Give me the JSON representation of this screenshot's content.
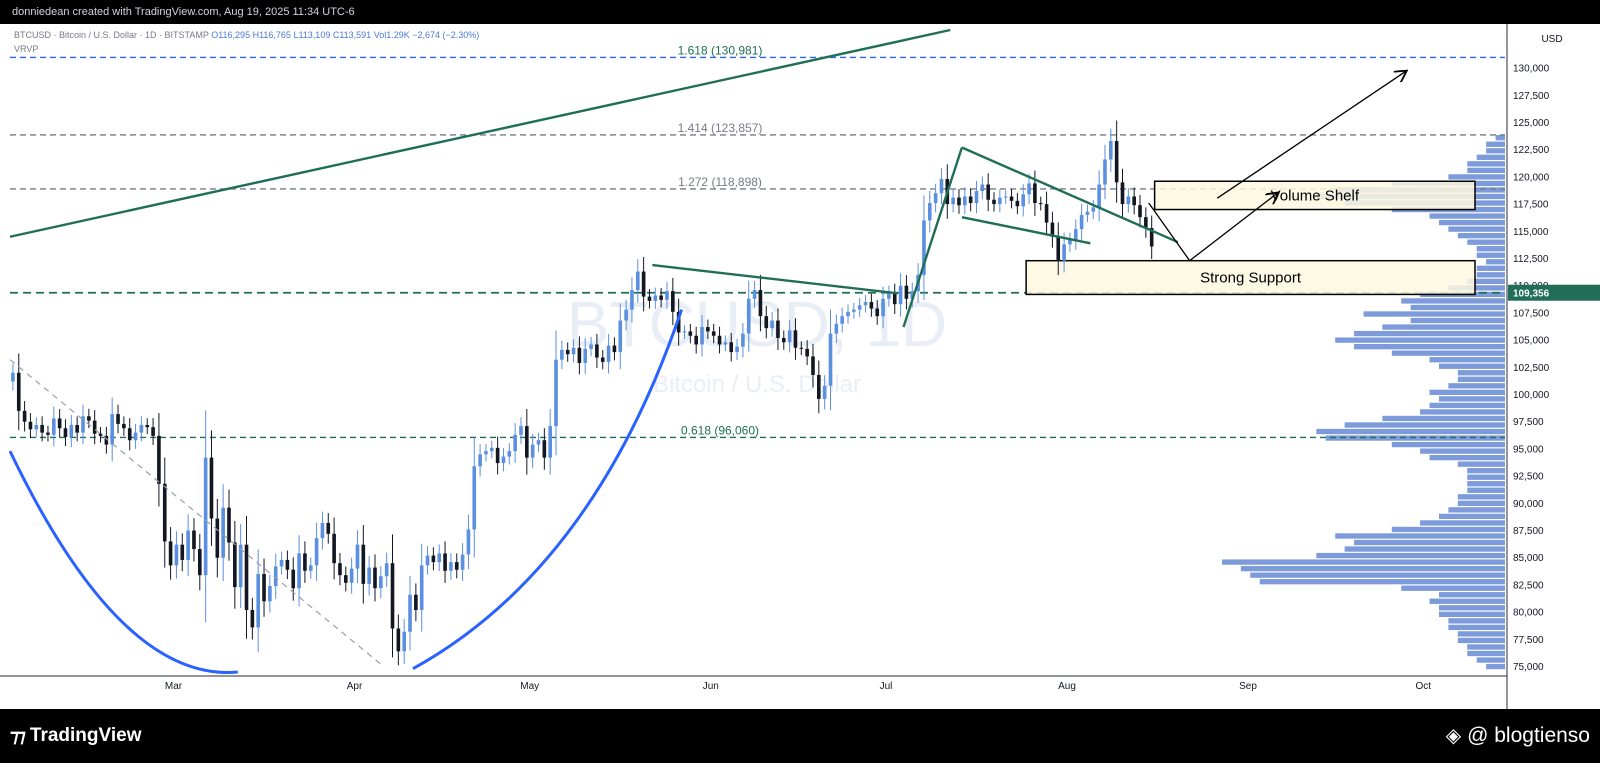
{
  "watermark_header": "donniedean created with TradingView.com, Aug 19, 2025 11:34 UTC-6",
  "footer": {
    "brand": "TradingView",
    "brand_icon": "tradingview-logo-icon",
    "author": "@ blogtienso",
    "author_icon": "binance-diamond-icon"
  },
  "colors": {
    "up": "#5b8fe0",
    "down": "#131722",
    "trend_green": "#1f6e55",
    "bowl_blue": "#2962ff",
    "fib_blue": "#2962ff",
    "fib_gray": "#787b86",
    "fib_green": "#1f6e55",
    "support_green": "#1f6e55",
    "vrvp": "#6f8fd6",
    "box_fill": "#fdf8e1",
    "price_tag": "#1f6e55"
  },
  "legend": {
    "symbol": "BTCUSD · Bitcoin / U.S. Dollar · 1D · BITSTAMP",
    "open": "O116,295",
    "high": "H116,765",
    "low": "L113,109",
    "close": "C113,591",
    "vol": "Vol1.29K",
    "change": "−2,674 (−2.30%)",
    "indicator": "VRVP"
  },
  "watermark": {
    "ticker": "BTCUSD, 1D",
    "name": "Bitcoin / U.S. Dollar"
  },
  "chart_data": {
    "type": "candlestick",
    "currency_label": "USD",
    "y_range": [
      74500,
      133500
    ],
    "y_ticks": [
      {
        "v": 75000,
        "label": "75,000"
      },
      {
        "v": 77500,
        "label": "77,500"
      },
      {
        "v": 80000,
        "label": "80,000"
      },
      {
        "v": 82500,
        "label": "82,500"
      },
      {
        "v": 85000,
        "label": "85,000"
      },
      {
        "v": 87500,
        "label": "87,500"
      },
      {
        "v": 90000,
        "label": "90,000"
      },
      {
        "v": 92500,
        "label": "92,500"
      },
      {
        "v": 95000,
        "label": "95,000"
      },
      {
        "v": 97500,
        "label": "97,500"
      },
      {
        "v": 100000,
        "label": "100,000"
      },
      {
        "v": 102500,
        "label": "102,500"
      },
      {
        "v": 105000,
        "label": "105,000"
      },
      {
        "v": 107500,
        "label": "107,500"
      },
      {
        "v": 110000,
        "label": "110,000"
      },
      {
        "v": 112500,
        "label": "112,500"
      },
      {
        "v": 115000,
        "label": "115,000"
      },
      {
        "v": 117500,
        "label": "117,500"
      },
      {
        "v": 120000,
        "label": "120,000"
      },
      {
        "v": 122500,
        "label": "122,500"
      },
      {
        "v": 125000,
        "label": "125,000"
      },
      {
        "v": 127500,
        "label": "127,500"
      },
      {
        "v": 130000,
        "label": "130,000"
      }
    ],
    "x_axis": {
      "start_date": "2025-02-01",
      "end_date": "2025-10-15",
      "ticks": [
        {
          "date": "2025-03-01",
          "label": "Mar"
        },
        {
          "date": "2025-04-01",
          "label": "Apr"
        },
        {
          "date": "2025-05-01",
          "label": "May"
        },
        {
          "date": "2025-06-01",
          "label": "Jun"
        },
        {
          "date": "2025-07-01",
          "label": "Jul"
        },
        {
          "date": "2025-08-01",
          "label": "Aug"
        },
        {
          "date": "2025-09-01",
          "label": "Sep"
        },
        {
          "date": "2025-10-01",
          "label": "Oct"
        }
      ]
    },
    "candles_start_date": "2025-02-01",
    "closes": [
      102000,
      98500,
      97500,
      96800,
      97200,
      96500,
      96300,
      97800,
      96900,
      96100,
      97200,
      96500,
      98000,
      97600,
      96400,
      96200,
      95400,
      98200,
      97300,
      96900,
      95800,
      96500,
      97200,
      97000,
      96200,
      91800,
      86500,
      84300,
      86200,
      84800,
      87500,
      85800,
      83400,
      94200,
      88600,
      85000,
      89600,
      86400,
      82300,
      86200,
      80200,
      78600,
      83500,
      81000,
      82400,
      84200,
      84800,
      83900,
      82200,
      85400,
      83800,
      84300,
      86800,
      88200,
      87200,
      84500,
      83400,
      82700,
      84000,
      86200,
      82600,
      84100,
      82200,
      83300,
      84500,
      78500,
      76400,
      78200,
      81600,
      80200,
      84300,
      85200,
      84600,
      85400,
      83800,
      84600,
      83900,
      85300,
      87600,
      93400,
      94500,
      94800,
      95100,
      93700,
      94300,
      94800,
      96300,
      97100,
      94200,
      95400,
      95800,
      94200,
      97100,
      103200,
      104100,
      103700,
      104300,
      102900,
      104200,
      104600,
      103400,
      103000,
      104500,
      103900,
      106800,
      107800,
      109600,
      111300,
      109000,
      108600,
      109100,
      108700,
      109500,
      107600,
      105700,
      105800,
      105400,
      104600,
      106200,
      105800,
      105400,
      104600,
      104800,
      103900,
      104400,
      105600,
      108800,
      109600,
      107200,
      106100,
      106800,
      105200,
      104800,
      105900,
      104300,
      104200,
      103500,
      101800,
      99600,
      100800,
      105600,
      106500,
      107200,
      107600,
      107800,
      108200,
      108500,
      107900,
      107200,
      108800,
      109300,
      108300,
      110000,
      108800,
      109500,
      111000,
      116000,
      117600,
      118500,
      119800,
      117500,
      118100,
      117400,
      118200,
      117600,
      118700,
      119300,
      117900,
      117500,
      118100,
      118200,
      117800,
      117300,
      118400,
      119400,
      117600,
      117500,
      115800,
      114500,
      112300,
      113800,
      114200,
      115200,
      116500,
      116800,
      117200,
      119300,
      121600,
      123300,
      119500,
      117500,
      118200,
      117400,
      116300,
      115300,
      113600
    ],
    "volume_profile": [
      {
        "price": 75000,
        "width": 2
      },
      {
        "price": 75600,
        "width": 3
      },
      {
        "price": 76200,
        "width": 4
      },
      {
        "price": 76800,
        "width": 4
      },
      {
        "price": 77400,
        "width": 5
      },
      {
        "price": 78000,
        "width": 5
      },
      {
        "price": 78600,
        "width": 6
      },
      {
        "price": 79200,
        "width": 6
      },
      {
        "price": 79800,
        "width": 7
      },
      {
        "price": 80400,
        "width": 7
      },
      {
        "price": 81000,
        "width": 8
      },
      {
        "price": 81600,
        "width": 7
      },
      {
        "price": 82200,
        "width": 11
      },
      {
        "price": 82800,
        "width": 26
      },
      {
        "price": 83400,
        "width": 27
      },
      {
        "price": 84000,
        "width": 28
      },
      {
        "price": 84600,
        "width": 30
      },
      {
        "price": 85200,
        "width": 20
      },
      {
        "price": 85800,
        "width": 17
      },
      {
        "price": 86400,
        "width": 16
      },
      {
        "price": 87000,
        "width": 18
      },
      {
        "price": 87600,
        "width": 12
      },
      {
        "price": 88200,
        "width": 9
      },
      {
        "price": 88800,
        "width": 7
      },
      {
        "price": 89400,
        "width": 6
      },
      {
        "price": 90000,
        "width": 5
      },
      {
        "price": 90600,
        "width": 5
      },
      {
        "price": 91200,
        "width": 4
      },
      {
        "price": 91800,
        "width": 4
      },
      {
        "price": 92400,
        "width": 4
      },
      {
        "price": 93000,
        "width": 4
      },
      {
        "price": 93600,
        "width": 5
      },
      {
        "price": 94200,
        "width": 8
      },
      {
        "price": 94800,
        "width": 9
      },
      {
        "price": 95400,
        "width": 12
      },
      {
        "price": 96000,
        "width": 19
      },
      {
        "price": 96600,
        "width": 20
      },
      {
        "price": 97200,
        "width": 17
      },
      {
        "price": 97800,
        "width": 13
      },
      {
        "price": 98400,
        "width": 9
      },
      {
        "price": 99000,
        "width": 8
      },
      {
        "price": 99600,
        "width": 7
      },
      {
        "price": 100200,
        "width": 8
      },
      {
        "price": 100800,
        "width": 6
      },
      {
        "price": 101400,
        "width": 5
      },
      {
        "price": 102000,
        "width": 5
      },
      {
        "price": 102600,
        "width": 7
      },
      {
        "price": 103200,
        "width": 8
      },
      {
        "price": 103800,
        "width": 12
      },
      {
        "price": 104400,
        "width": 16
      },
      {
        "price": 105000,
        "width": 18
      },
      {
        "price": 105600,
        "width": 16
      },
      {
        "price": 106200,
        "width": 13
      },
      {
        "price": 106800,
        "width": 10
      },
      {
        "price": 107400,
        "width": 15
      },
      {
        "price": 108000,
        "width": 10
      },
      {
        "price": 108600,
        "width": 11
      },
      {
        "price": 109200,
        "width": 9
      },
      {
        "price": 109800,
        "width": 6
      },
      {
        "price": 110400,
        "width": 4
      },
      {
        "price": 111000,
        "width": 3
      },
      {
        "price": 111600,
        "width": 3
      },
      {
        "price": 112200,
        "width": 2
      },
      {
        "price": 112800,
        "width": 3
      },
      {
        "price": 113400,
        "width": 3
      },
      {
        "price": 114000,
        "width": 4
      },
      {
        "price": 114600,
        "width": 5
      },
      {
        "price": 115200,
        "width": 6
      },
      {
        "price": 115800,
        "width": 7
      },
      {
        "price": 116400,
        "width": 8
      },
      {
        "price": 117000,
        "width": 12
      },
      {
        "price": 117600,
        "width": 17
      },
      {
        "price": 118200,
        "width": 20
      },
      {
        "price": 118800,
        "width": 18
      },
      {
        "price": 119400,
        "width": 12
      },
      {
        "price": 120000,
        "width": 6
      },
      {
        "price": 120600,
        "width": 4
      },
      {
        "price": 121200,
        "width": 4
      },
      {
        "price": 121800,
        "width": 3
      },
      {
        "price": 122400,
        "width": 2
      },
      {
        "price": 123000,
        "width": 2
      },
      {
        "price": 123600,
        "width": 1
      }
    ],
    "fib_levels": [
      {
        "ratio": "1.618",
        "price": 130981,
        "label": "1.618 (130,981)",
        "style": "blue-dashed"
      },
      {
        "ratio": "1.414",
        "price": 123857,
        "label": "1.414 (123,857)",
        "style": "gray-dashed"
      },
      {
        "ratio": "1.272",
        "price": 118898,
        "label": "1.272 (118,898)",
        "style": "gray-dashed"
      },
      {
        "ratio": "0.618",
        "price": 96060,
        "label": "0.618 (96,060)",
        "style": "green-dashed"
      }
    ],
    "support_line": {
      "price": 109356,
      "label": "109,356"
    },
    "annotations": {
      "volume_shelf": {
        "label": "Volume Shelf",
        "price_low": 117000,
        "price_high": 119600,
        "start": "2025-08-16",
        "end": "2025-10-15"
      },
      "strong_support": {
        "label": "Strong Support",
        "price_low": 109200,
        "price_high": 112300,
        "start": "2025-07-25",
        "end": "2025-10-15"
      }
    },
    "trendlines": [
      {
        "name": "ascending-channel",
        "from": [
          "2025-02-01",
          114500
        ],
        "to": [
          "2025-07-12",
          133500
        ]
      },
      {
        "name": "descending-resistance",
        "from": [
          "2025-02-01",
          103200
        ],
        "to": [
          "2025-04-06",
          75000
        ],
        "style": "dashed"
      },
      {
        "name": "consolidation-top",
        "from": [
          "2025-05-22",
          111900
        ],
        "to": [
          "2025-07-03",
          109300
        ]
      },
      {
        "name": "flag-top",
        "from": [
          "2025-07-14",
          122700
        ],
        "to": [
          "2025-08-20",
          114000
        ]
      },
      {
        "name": "flag-bottom",
        "from": [
          "2025-07-14",
          116300
        ],
        "to": [
          "2025-08-05",
          113900
        ]
      },
      {
        "name": "impulse",
        "from": [
          "2025-07-04",
          106200
        ],
        "to": [
          "2025-07-14",
          122700
        ]
      }
    ],
    "projection": [
      [
        "2025-08-15",
        117600
      ],
      [
        "2025-08-22",
        112300
      ],
      [
        "2025-09-06",
        118500
      ],
      [
        "2025-09-28",
        129700
      ]
    ],
    "grid": false,
    "legend_position": "top-left"
  }
}
